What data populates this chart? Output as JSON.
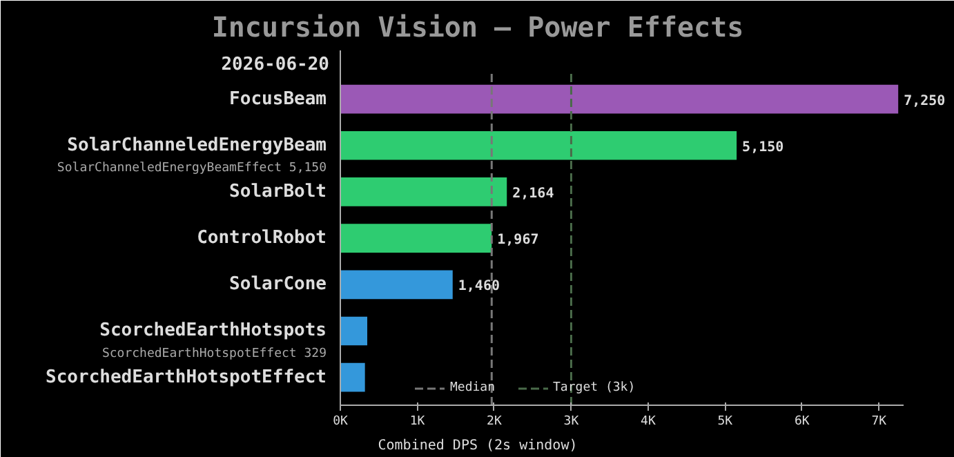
{
  "chart_data": {
    "type": "bar",
    "orientation": "horizontal",
    "title": "Incursion Vision — Power Effects",
    "subtitle": "2026-06-20",
    "xlabel": "Combined DPS (2s window)",
    "categories": [
      "FocusBeam",
      "SolarChanneledEnergyBeam",
      "SolarBolt",
      "ControlRobot",
      "SolarCone",
      "ScorchedEarthHotspots",
      "ScorchedEarthHotspotEffect"
    ],
    "values": [
      7250,
      5150,
      2164,
      1967,
      1460,
      350,
      320
    ],
    "colors": [
      "#9b59b6",
      "#2ecc71",
      "#2ecc71",
      "#2ecc71",
      "#3498db",
      "#3498db",
      "#3498db"
    ],
    "value_labels": [
      "7,250",
      "5,150",
      "2,164",
      "1,967",
      "1,460",
      null,
      null
    ],
    "xlim": [
      0,
      7320
    ],
    "xticks": [
      {
        "value": 0,
        "label": "0K"
      },
      {
        "value": 1000,
        "label": "1K"
      },
      {
        "value": 2000,
        "label": "2K"
      },
      {
        "value": 3000,
        "label": "3K"
      },
      {
        "value": 4000,
        "label": "4K"
      },
      {
        "value": 5000,
        "label": "5K"
      },
      {
        "value": 6000,
        "label": "6K"
      },
      {
        "value": 7000,
        "label": "7K"
      }
    ],
    "ref_lines": [
      {
        "axis": "x",
        "value": 1967,
        "label": "Median",
        "color": "#777777",
        "line_style": "dashed"
      },
      {
        "axis": "x",
        "value": 3000,
        "label": "Target (3k)",
        "color": "#4a6b4a",
        "line_style": "dashed"
      }
    ],
    "annotations": [
      "SolarChanneledEnergyBeamEffect 5,150",
      "ScorchedEarthHotspotEffect 329"
    ],
    "legend": "bottom",
    "grid": false
  }
}
